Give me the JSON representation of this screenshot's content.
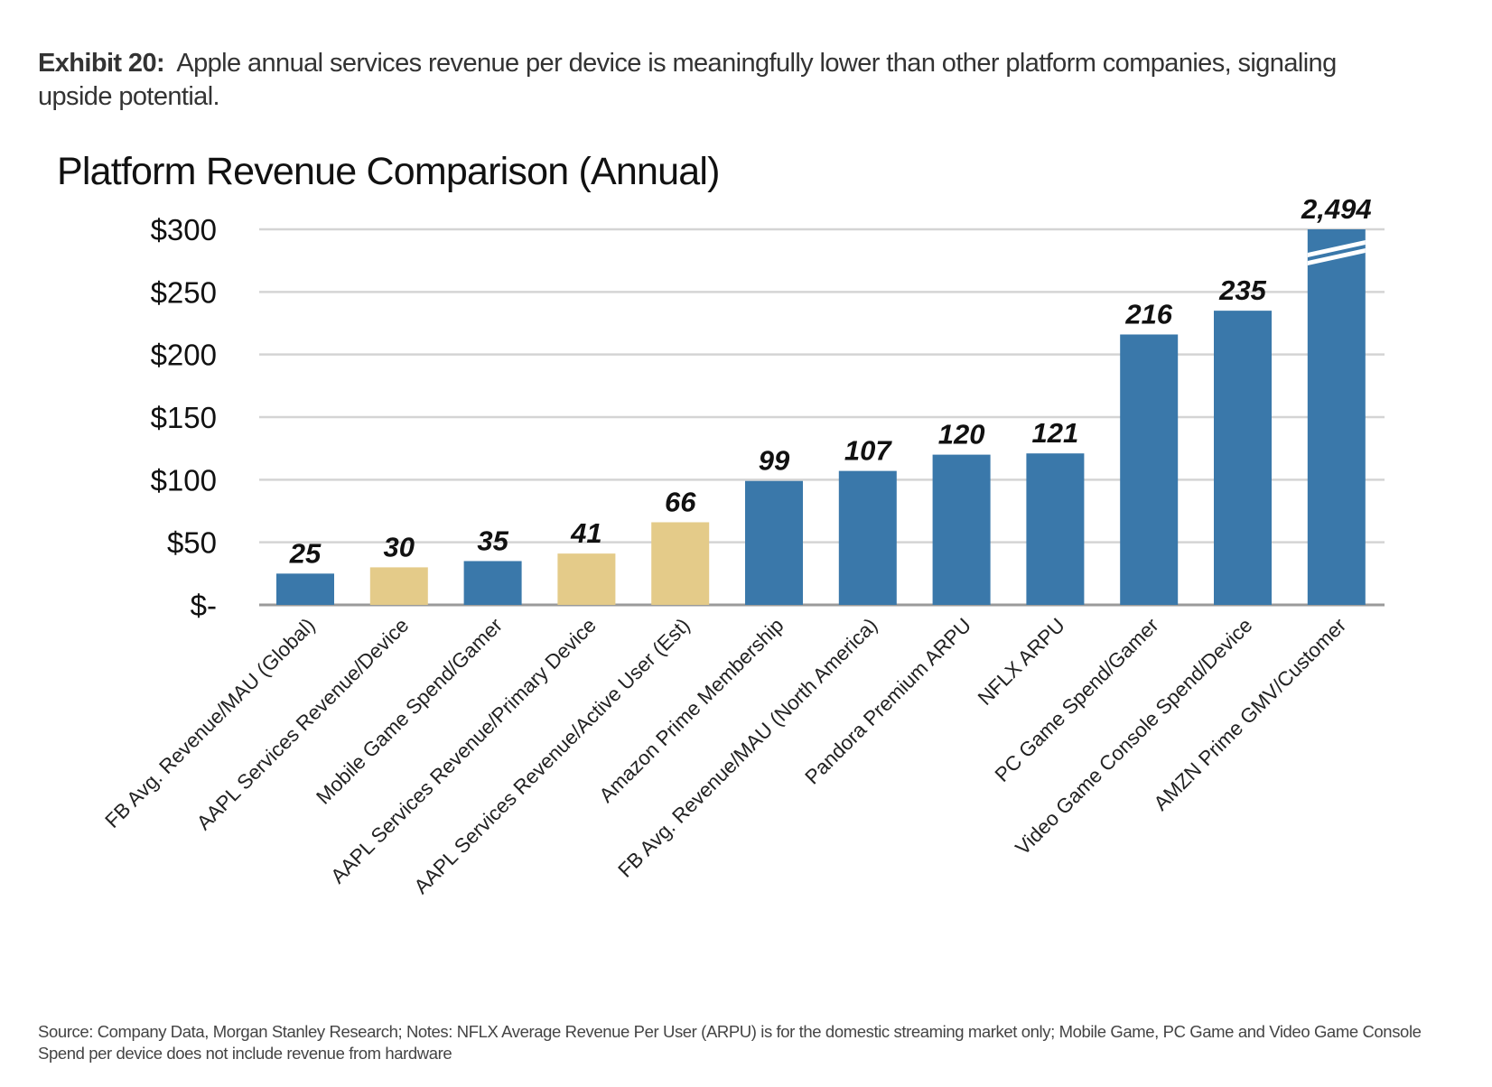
{
  "exhibit": {
    "label": "Exhibit 20:",
    "text": "Apple annual services revenue per device is meaningfully lower than other platform companies, signaling upside potential."
  },
  "footer": {
    "text": "Source: Company Data, Morgan Stanley Research; Notes: NFLX Average Revenue Per User (ARPU) is for the domestic streaming market only; Mobile Game, PC Game and Video Game Console Spend per device does not include revenue from hardware"
  },
  "colors": {
    "blue": "#3a78aa",
    "tan": "#e4cb89",
    "grid": "#d4d4d4",
    "axis": "#9a9a9a"
  },
  "chart_data": {
    "type": "bar",
    "title": "Platform Revenue Comparison (Annual)",
    "xlabel": "",
    "ylabel": "",
    "ylim": [
      0,
      300
    ],
    "yticks": [
      0,
      50,
      100,
      150,
      200,
      250,
      300
    ],
    "ytick_labels": [
      "$-",
      "$50",
      "$100",
      "$150",
      "$200",
      "$250",
      "$300"
    ],
    "grid": true,
    "categories": [
      "FB Avg. Revenue/MAU (Global)",
      "AAPL Services Revenue/Device",
      "Mobile Game Spend/Gamer",
      "AAPL Services Revenue/Primary Device",
      "AAPL Services Revenue/Active User (Est)",
      "Amazon Prime Membership",
      "FB Avg. Revenue/MAU (North America)",
      "Pandora Premium ARPU",
      "NFLX ARPU",
      "PC Game Spend/Gamer",
      "Video Game Console Spend/Device",
      "AMZN Prime GMV/Customer"
    ],
    "values": [
      25,
      30,
      35,
      41,
      66,
      99,
      107,
      120,
      121,
      216,
      235,
      2494
    ],
    "value_labels": [
      "25",
      "30",
      "35",
      "41",
      "66",
      "99",
      "107",
      "120",
      "121",
      "216",
      "235",
      "2,494"
    ],
    "bar_colors": [
      "blue",
      "tan",
      "blue",
      "tan",
      "tan",
      "blue",
      "blue",
      "blue",
      "blue",
      "blue",
      "blue",
      "blue"
    ],
    "truncated_bars": [
      "AMZN Prime GMV/Customer"
    ],
    "annotations": [
      "Bar for AMZN Prime GMV/Customer is truncated at $300 with axis-break marks"
    ]
  }
}
